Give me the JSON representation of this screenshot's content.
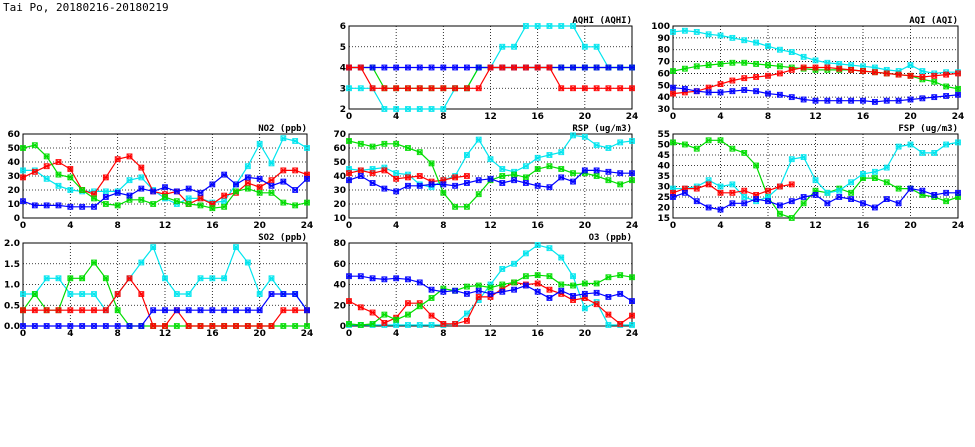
{
  "title": "Tai Po, 20180216-20180219",
  "colors": {
    "day1": "#00e5ee",
    "day2": "#ff0000",
    "day3": "#00dd00",
    "day4": "#0000ff"
  },
  "chart_data": [
    {
      "id": "no2",
      "type": "line",
      "title": "NO2 (ppb)",
      "xlim": [
        0,
        24
      ],
      "ylim": [
        0,
        60
      ],
      "xticks": [
        "0",
        "4",
        "8",
        "12",
        "16",
        "20",
        "24"
      ],
      "yticks": [
        "0",
        "10",
        "20",
        "30",
        "40",
        "50",
        "60"
      ],
      "grid": true,
      "series": [
        {
          "color": "day1",
          "values": [
            34,
            34,
            28,
            23,
            20,
            19,
            19,
            19,
            19,
            27,
            29,
            20,
            14,
            10,
            14,
            14,
            11,
            12,
            24,
            37,
            53,
            39,
            57,
            55,
            50
          ]
        },
        {
          "color": "day2",
          "values": [
            29,
            33,
            37,
            40,
            35,
            20,
            17,
            29,
            42,
            44,
            36,
            19,
            17,
            19,
            10,
            14,
            10,
            16,
            18,
            25,
            22,
            27,
            34,
            34,
            31
          ]
        },
        {
          "color": "day3",
          "values": [
            50,
            52,
            44,
            31,
            29,
            20,
            14,
            10,
            9,
            13,
            13,
            10,
            15,
            12,
            10,
            9,
            7,
            8,
            19,
            21,
            18,
            18,
            11,
            9,
            11
          ]
        },
        {
          "color": "day4",
          "values": [
            12,
            9,
            9,
            9,
            8,
            8,
            8,
            15,
            18,
            16,
            21,
            19,
            22,
            19,
            21,
            18,
            24,
            31,
            24,
            29,
            28,
            23,
            26,
            20,
            28
          ]
        }
      ]
    },
    {
      "id": "so2",
      "type": "line",
      "title": "SO2 (ppb)",
      "xlim": [
        0,
        24
      ],
      "ylim": [
        0,
        2
      ],
      "xticks": [
        "0",
        "4",
        "8",
        "12",
        "16",
        "20",
        "24"
      ],
      "yticks": [
        "0.0",
        "0.5",
        "1.0",
        "1.5",
        "2.0"
      ],
      "grid": true,
      "series": [
        {
          "color": "day1",
          "values": [
            0.77,
            0.77,
            1.15,
            1.15,
            0.77,
            0.77,
            0.77,
            0.38,
            0.77,
            1.15,
            1.53,
            1.9,
            1.15,
            0.77,
            0.77,
            1.15,
            1.15,
            1.15,
            1.9,
            1.53,
            0.77,
            1.15,
            0.77,
            0.77,
            0.38
          ]
        },
        {
          "color": "day3",
          "values": [
            0.38,
            0.77,
            0.38,
            0.38,
            1.15,
            1.15,
            1.53,
            1.15,
            0.38,
            0,
            0,
            0,
            0,
            0,
            0,
            0,
            0,
            0,
            0,
            0,
            0,
            0,
            0,
            0,
            0
          ]
        },
        {
          "color": "day2",
          "values": [
            0.38,
            0.38,
            0.38,
            0.38,
            0.38,
            0.38,
            0.38,
            0.38,
            0.77,
            1.15,
            0.77,
            0,
            0,
            0.38,
            0,
            0,
            0,
            0,
            0,
            0,
            0,
            0,
            0.38,
            0.38,
            0.38
          ]
        },
        {
          "color": "day4",
          "values": [
            0,
            0,
            0,
            0,
            0,
            0,
            0,
            0,
            0,
            0,
            0,
            0.38,
            0.38,
            0.38,
            0.38,
            0.38,
            0.38,
            0.38,
            0.38,
            0.38,
            0.38,
            0.77,
            0.77,
            0.77,
            0.38
          ]
        }
      ]
    },
    {
      "id": "aqhi",
      "type": "line",
      "title": "AQHI (AQHI)",
      "xlim": [
        0,
        24
      ],
      "ylim": [
        2,
        6
      ],
      "xticks": [
        "0",
        "4",
        "8",
        "12",
        "16",
        "20",
        "24"
      ],
      "yticks": [
        "2",
        "3",
        "4",
        "5",
        "6"
      ],
      "grid": true,
      "series": [
        {
          "color": "day1",
          "values": [
            3,
            3,
            3,
            2,
            2,
            2,
            2,
            2,
            2,
            3,
            3,
            4,
            4,
            5,
            5,
            6,
            6,
            6,
            6,
            6,
            5,
            5,
            4,
            4,
            4
          ]
        },
        {
          "color": "day3",
          "values": [
            4,
            4,
            4,
            3,
            3,
            3,
            3,
            3,
            3,
            3,
            3,
            4,
            4,
            4,
            4,
            4,
            4,
            4,
            4,
            4,
            4,
            4,
            4,
            4,
            4
          ]
        },
        {
          "color": "day4",
          "values": [
            4,
            4,
            4,
            4,
            4,
            4,
            4,
            4,
            4,
            4,
            4,
            4,
            4,
            4,
            4,
            4,
            4,
            4,
            4,
            4,
            4,
            4,
            4,
            4,
            4
          ]
        },
        {
          "color": "day2",
          "values": [
            4,
            4,
            3,
            3,
            3,
            3,
            3,
            3,
            3,
            3,
            3,
            3,
            4,
            4,
            4,
            4,
            4,
            4,
            3,
            3,
            3,
            3,
            3,
            3,
            3
          ]
        }
      ]
    },
    {
      "id": "rsp",
      "type": "line",
      "title": "RSP (ug/m3)",
      "xlim": [
        0,
        24
      ],
      "ylim": [
        10,
        70
      ],
      "xticks": [
        "0",
        "4",
        "8",
        "12",
        "16",
        "20",
        "24"
      ],
      "yticks": [
        "10",
        "20",
        "30",
        "40",
        "50",
        "60",
        "70"
      ],
      "grid": true,
      "series": [
        {
          "color": "day1",
          "values": [
            45,
            44,
            45,
            46,
            42,
            41,
            34,
            32,
            37,
            40,
            55,
            66,
            52,
            45,
            43,
            47,
            53,
            55,
            57,
            69,
            68,
            62,
            60,
            64,
            65
          ]
        },
        {
          "color": "day2",
          "values": [
            42,
            44,
            42,
            44,
            38,
            39,
            40,
            36,
            37,
            39,
            40,
            null,
            null,
            null,
            null,
            null,
            null,
            null,
            null,
            null,
            null,
            null,
            null,
            null,
            null
          ]
        },
        {
          "color": "day3",
          "values": [
            65,
            63,
            61,
            63,
            63,
            60,
            57,
            49,
            28,
            18,
            18,
            27,
            37,
            40,
            41,
            39,
            45,
            47,
            45,
            42,
            42,
            40,
            37,
            34,
            37
          ]
        },
        {
          "color": "day4",
          "values": [
            37,
            40,
            35,
            31,
            29,
            33,
            33,
            34,
            34,
            33,
            35,
            37,
            38,
            35,
            37,
            35,
            33,
            32,
            39,
            36,
            44,
            44,
            43,
            42,
            42
          ]
        }
      ]
    },
    {
      "id": "o3",
      "type": "line",
      "title": "O3 (ppb)",
      "xlim": [
        0,
        24
      ],
      "ylim": [
        0,
        80
      ],
      "xticks": [
        "0",
        "4",
        "8",
        "12",
        "16",
        "20",
        "24"
      ],
      "yticks": [
        "0",
        "20",
        "40",
        "60",
        "80"
      ],
      "grid": true,
      "series": [
        {
          "color": "day1",
          "values": [
            1,
            1,
            1,
            1,
            1,
            1,
            1,
            1,
            1,
            2,
            12,
            25,
            40,
            55,
            60,
            70,
            78,
            75,
            66,
            48,
            17,
            23,
            1,
            1,
            1
          ]
        },
        {
          "color": "day2",
          "values": [
            24,
            18,
            13,
            3,
            8,
            22,
            22,
            10,
            2,
            2,
            5,
            28,
            28,
            36,
            42,
            40,
            41,
            35,
            31,
            25,
            27,
            21,
            11,
            2,
            10
          ]
        },
        {
          "color": "day3",
          "values": [
            2,
            1,
            2,
            11,
            6,
            11,
            19,
            27,
            36,
            34,
            38,
            39,
            37,
            40,
            42,
            48,
            49,
            48,
            40,
            39,
            41,
            41,
            47,
            49,
            47
          ]
        },
        {
          "color": "day4",
          "values": [
            48,
            48,
            46,
            45,
            46,
            45,
            42,
            35,
            33,
            34,
            31,
            34,
            31,
            33,
            35,
            39,
            33,
            27,
            34,
            29,
            31,
            32,
            28,
            31,
            24
          ]
        }
      ]
    },
    {
      "id": "aqi",
      "type": "line",
      "title": "AQI (AQI)",
      "xlim": [
        0,
        24
      ],
      "ylim": [
        30,
        100
      ],
      "xticks": [
        "0",
        "4",
        "8",
        "12",
        "16",
        "20",
        "24"
      ],
      "yticks": [
        "30",
        "40",
        "50",
        "60",
        "70",
        "80",
        "90",
        "100"
      ],
      "grid": true,
      "series": [
        {
          "color": "day1",
          "values": [
            95,
            96,
            95,
            93,
            92,
            90,
            88,
            86,
            83,
            80,
            78,
            74,
            71,
            69,
            68,
            67,
            66,
            65,
            63,
            62,
            67,
            62,
            60,
            61,
            61
          ]
        },
        {
          "color": "day3",
          "values": [
            62,
            64,
            66,
            67,
            68,
            69,
            69,
            68,
            67,
            66,
            65,
            64,
            63,
            63,
            63,
            63,
            62,
            61,
            60,
            59,
            58,
            55,
            53,
            49,
            47
          ]
        },
        {
          "color": "day2",
          "values": [
            43,
            44,
            45,
            48,
            51,
            54,
            56,
            57,
            58,
            60,
            63,
            65,
            65,
            65,
            64,
            63,
            62,
            61,
            60,
            59,
            58,
            57,
            58,
            59,
            60
          ]
        },
        {
          "color": "day4",
          "values": [
            48,
            47,
            45,
            44,
            44,
            45,
            46,
            45,
            43,
            42,
            40,
            38,
            37,
            37,
            37,
            37,
            37,
            36,
            37,
            37,
            38,
            39,
            40,
            41,
            42
          ]
        }
      ]
    },
    {
      "id": "fsp",
      "type": "line",
      "title": "FSP (ug/m3)",
      "xlim": [
        0,
        24
      ],
      "ylim": [
        15,
        55
      ],
      "xticks": [
        "0",
        "4",
        "8",
        "12",
        "16",
        "20",
        "24"
      ],
      "yticks": [
        "15",
        "20",
        "25",
        "30",
        "35",
        "40",
        "45",
        "50",
        "55"
      ],
      "grid": true,
      "series": [
        {
          "color": "day3",
          "values": [
            51,
            50,
            48,
            52,
            52,
            48,
            46,
            40,
            25,
            17,
            15,
            22,
            28,
            27,
            29,
            27,
            34,
            34,
            32,
            29,
            29,
            26,
            25,
            23,
            25
          ]
        },
        {
          "color": "day1",
          "values": [
            29,
            29,
            30,
            33,
            30,
            31,
            25,
            23,
            25,
            30,
            43,
            44,
            33,
            27,
            28,
            32,
            36,
            37,
            39,
            49,
            50,
            46,
            46,
            50,
            51
          ]
        },
        {
          "color": "day2",
          "values": [
            27,
            29,
            29,
            31,
            27,
            27,
            28,
            26,
            28,
            30,
            31,
            null,
            null,
            null,
            null,
            null,
            null,
            null,
            null,
            null,
            null,
            null,
            null,
            null,
            null
          ]
        },
        {
          "color": "day4",
          "values": [
            25,
            27,
            23,
            20,
            19,
            22,
            22,
            24,
            23,
            21,
            23,
            25,
            26,
            22,
            25,
            24,
            22,
            20,
            24,
            22,
            29,
            28,
            26,
            27,
            27
          ]
        }
      ]
    }
  ]
}
